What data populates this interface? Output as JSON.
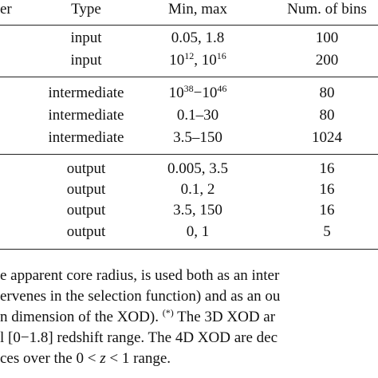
{
  "table": {
    "header": [
      "er",
      "Type",
      "Min, max",
      "Num. of bins"
    ],
    "rows": [
      {
        "type": "input",
        "min_max": [
          {
            "text": "0.05, 1.8"
          }
        ],
        "bins": "100"
      },
      {
        "type": "input",
        "min_max": [
          {
            "text": "10"
          },
          {
            "sup": "12"
          },
          {
            "text": ", 10"
          },
          {
            "sup": "16"
          }
        ],
        "bins": "200"
      },
      {
        "type": "intermediate",
        "min_max": [
          {
            "text": "10"
          },
          {
            "sup": "38"
          },
          {
            "text": "−10"
          },
          {
            "sup": "46"
          }
        ],
        "bins": "80"
      },
      {
        "type": "intermediate",
        "min_max": [
          {
            "text": "0.1–30"
          }
        ],
        "bins": "80"
      },
      {
        "type": "intermediate",
        "min_max": [
          {
            "text": "3.5–150"
          }
        ],
        "bins": "1024"
      },
      {
        "type": "output",
        "min_max": [
          {
            "text": "0.005, 3.5"
          }
        ],
        "bins": "16"
      },
      {
        "type": "output",
        "min_max": [
          {
            "text": "0.1, 2"
          }
        ],
        "bins": "16"
      },
      {
        "type": "output",
        "min_max": [
          {
            "text": "3.5, 150"
          }
        ],
        "bins": "16"
      },
      {
        "type": "output",
        "min_max": [
          {
            "text": "0, 1"
          }
        ],
        "bins": "5"
      }
    ]
  },
  "footnote": [
    [
      {
        "text": "e apparent core radius, is used both as an inter"
      }
    ],
    [
      {
        "text": "ervenes in the selection function) and as an ou"
      }
    ],
    [
      {
        "text": "n dimension of the XOD). "
      },
      {
        "sup": "(*)"
      },
      {
        "text": " The 3D XOD ar"
      }
    ],
    [
      {
        "text": "l [0−1.8] redshift range. The 4D XOD are dec"
      }
    ],
    [
      {
        "text": "ces over the 0 < "
      },
      {
        "i": "z"
      },
      {
        "text": " < 1 range."
      }
    ]
  ]
}
